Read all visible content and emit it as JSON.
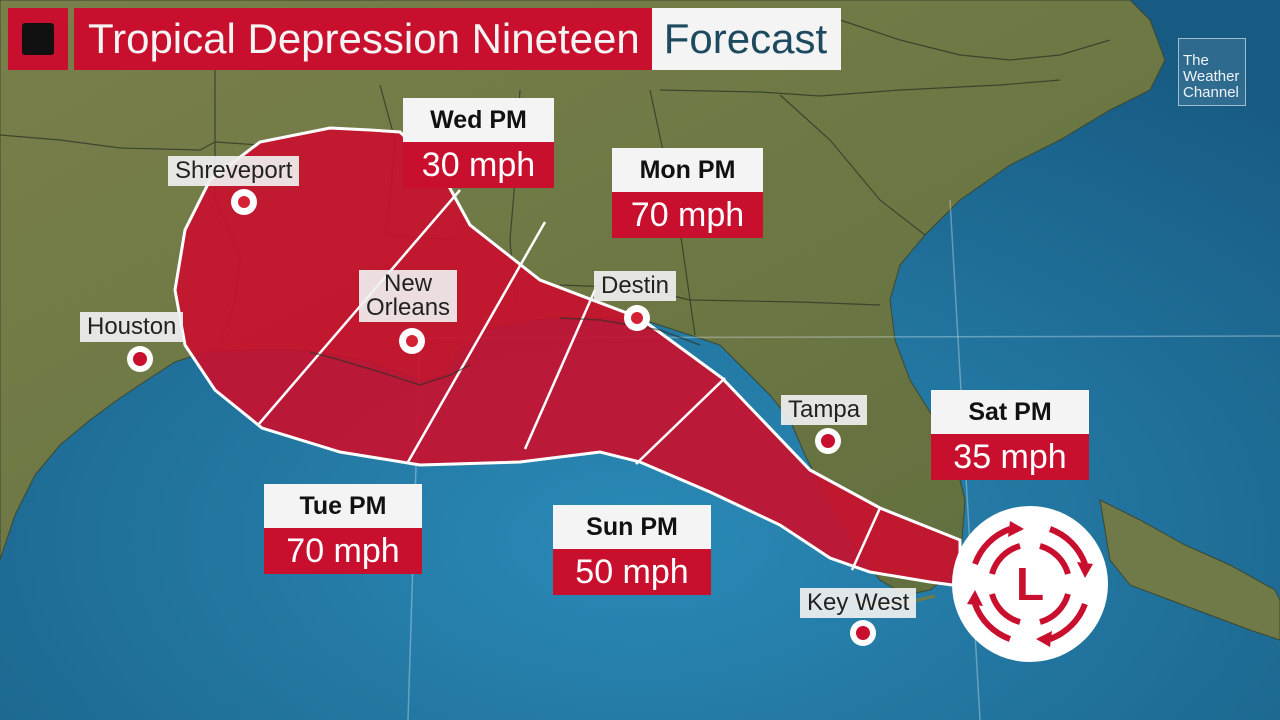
{
  "title": {
    "main": "Tropical Depression Nineteen",
    "sub": "Forecast"
  },
  "logo": {
    "line1": "The",
    "line2": "Weather",
    "line3": "Channel"
  },
  "cities": [
    {
      "name": "Shreveport"
    },
    {
      "name": "Houston"
    },
    {
      "name": "New Orleans",
      "line1": "New",
      "line2": "Orleans"
    },
    {
      "name": "Destin"
    },
    {
      "name": "Tampa"
    },
    {
      "name": "Key West"
    }
  ],
  "forecast_points": [
    {
      "day": "Wed PM",
      "wind": "30 mph"
    },
    {
      "day": "Mon PM",
      "wind": "70 mph"
    },
    {
      "day": "Tue PM",
      "wind": "70 mph"
    },
    {
      "day": "Sun PM",
      "wind": "50 mph"
    },
    {
      "day": "Sat PM",
      "wind": "35 mph"
    }
  ],
  "storm": {
    "symbol": "L"
  },
  "colors": {
    "cone": "#c8102e",
    "land": "#6f7a48",
    "water": "#1d6a94",
    "label_bg": "#f4f4f4"
  }
}
